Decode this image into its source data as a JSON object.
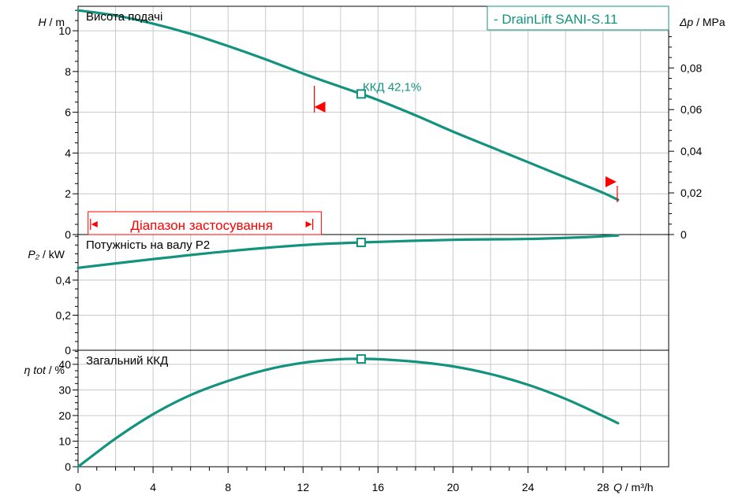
{
  "colors": {
    "curve": "#13937e",
    "marker": "#ff0000",
    "grid": "#c8c8c8",
    "axis": "#000000"
  },
  "chart_data": {
    "type": "line",
    "legend": {
      "label": "-   DrainLift SANI-S.11",
      "placement": "top-right"
    },
    "x_axis": {
      "symbol": "Q",
      "unit": "/ m³/h",
      "range": [
        0,
        31.5
      ],
      "ticks": [
        0,
        4,
        8,
        12,
        16,
        20,
        24,
        28
      ],
      "tick_labels": [
        "0",
        "4",
        "8",
        "12",
        "16",
        "20",
        "24",
        "28"
      ]
    },
    "head_panel": {
      "title": "Висота подачі",
      "y_symbol": "H",
      "y_unit": "/ m",
      "ylim": [
        0,
        11.2
      ],
      "ticks": [
        0,
        2,
        4,
        6,
        8,
        10
      ],
      "tick_labels": [
        "0",
        "2",
        "4",
        "6",
        "8",
        "10"
      ],
      "right_symbol": "Δp",
      "right_unit": "/ MPa",
      "right_ticks": [
        0,
        0.02,
        0.04,
        0.06,
        0.08
      ],
      "right_tick_labels": [
        "0",
        "0,02",
        "0,04",
        "0,06",
        "0,08"
      ],
      "series": [
        {
          "name": "DrainLift SANI-S.11",
          "x": [
            0,
            2,
            4,
            6,
            8,
            10,
            12,
            14,
            15.1,
            16,
            18,
            20,
            22,
            24,
            26,
            28,
            28.8
          ],
          "y": [
            11.0,
            10.75,
            10.35,
            9.85,
            9.25,
            8.6,
            7.9,
            7.25,
            6.9,
            6.6,
            5.85,
            5.05,
            4.3,
            3.55,
            2.8,
            2.05,
            1.7
          ]
        }
      ],
      "operating_point": {
        "x": 15.1,
        "y": 6.9,
        "label": "ККД  42,1%"
      },
      "range_marks": {
        "left_x": 12.6,
        "right_x": 28.8
      },
      "application_range": {
        "label": "Діапазон застосування",
        "x_start": 0.2,
        "x_end": 12.6
      }
    },
    "power_panel": {
      "title": "Потужність на валу P2",
      "y_symbol": "P₂",
      "y_unit": "/ kW",
      "ylim": [
        0,
        0.66
      ],
      "ticks": [
        0,
        0.2,
        0.4
      ],
      "tick_labels": [
        "0",
        "0,2",
        "0,4"
      ],
      "series": [
        {
          "name": "DrainLift SANI-S.11",
          "x": [
            0,
            4,
            8,
            12,
            15.1,
            20,
            24,
            27,
            28.8
          ],
          "y": [
            0.47,
            0.52,
            0.565,
            0.6,
            0.615,
            0.63,
            0.635,
            0.645,
            0.655
          ]
        }
      ],
      "operating_point": {
        "x": 15.1,
        "y": 0.615
      }
    },
    "efficiency_panel": {
      "title": "Загальний ККД",
      "y_symbol": "η tot",
      "y_unit": "/ %",
      "ylim": [
        0,
        45.5
      ],
      "ticks": [
        0,
        10,
        20,
        30,
        40
      ],
      "tick_labels": [
        "0",
        "10",
        "20",
        "30",
        "40"
      ],
      "series": [
        {
          "name": "DrainLift SANI-S.11",
          "x": [
            0,
            2,
            4,
            6,
            8,
            10,
            12,
            14,
            15.1,
            16,
            18,
            20,
            22,
            24,
            26,
            28,
            28.8
          ],
          "y": [
            0,
            11,
            20.5,
            28,
            33.5,
            37.8,
            40.6,
            42,
            42.1,
            42,
            41,
            39.2,
            36.2,
            32,
            26.5,
            19.8,
            17
          ]
        }
      ],
      "operating_point": {
        "x": 15.1,
        "y": 42.1
      }
    }
  }
}
